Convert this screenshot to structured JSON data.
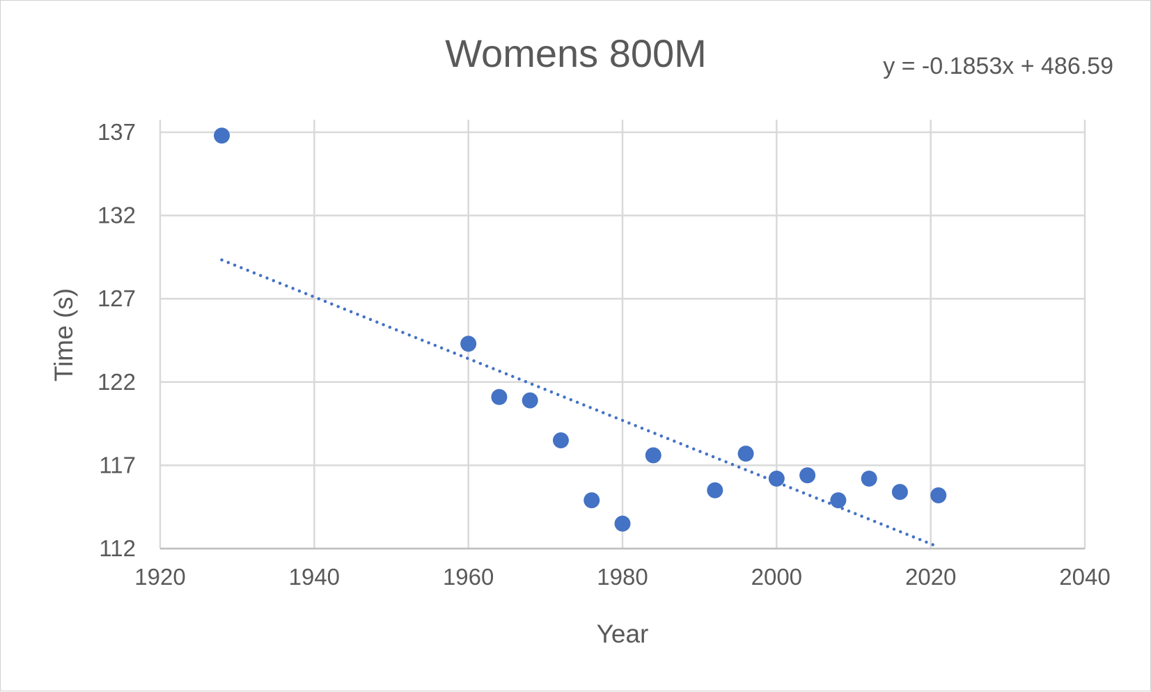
{
  "chart_data": {
    "type": "scatter",
    "title": "Womens 800M",
    "xlabel": "Year",
    "ylabel": "Time (s)",
    "xlim": [
      1920,
      2040
    ],
    "ylim": [
      112,
      137
    ],
    "x_ticks": [
      "1920",
      "1940",
      "1960",
      "1980",
      "2000",
      "2020",
      "2040"
    ],
    "y_ticks": [
      "112",
      "117",
      "122",
      "127",
      "132",
      "137"
    ],
    "grid": true,
    "series": [
      {
        "marker_color": "#4472c4",
        "points": [
          {
            "x": 1928,
            "y": 136.8
          },
          {
            "x": 1960,
            "y": 124.3
          },
          {
            "x": 1964,
            "y": 121.1
          },
          {
            "x": 1968,
            "y": 120.9
          },
          {
            "x": 1972,
            "y": 118.5
          },
          {
            "x": 1976,
            "y": 114.9
          },
          {
            "x": 1980,
            "y": 113.5
          },
          {
            "x": 1984,
            "y": 117.6
          },
          {
            "x": 1992,
            "y": 115.5
          },
          {
            "x": 1996,
            "y": 117.7
          },
          {
            "x": 2000,
            "y": 116.2
          },
          {
            "x": 2004,
            "y": 116.4
          },
          {
            "x": 2008,
            "y": 114.9
          },
          {
            "x": 2012,
            "y": 116.2
          },
          {
            "x": 2016,
            "y": 115.4
          },
          {
            "x": 2021,
            "y": 115.2
          }
        ]
      }
    ],
    "trendline": {
      "type": "linear",
      "style": "dotted",
      "color": "#4472c4",
      "slope": -0.1853,
      "intercept": 486.59,
      "x_range": [
        1928,
        2021
      ],
      "equation_label": "y = -0.1853x + 486.59"
    }
  }
}
